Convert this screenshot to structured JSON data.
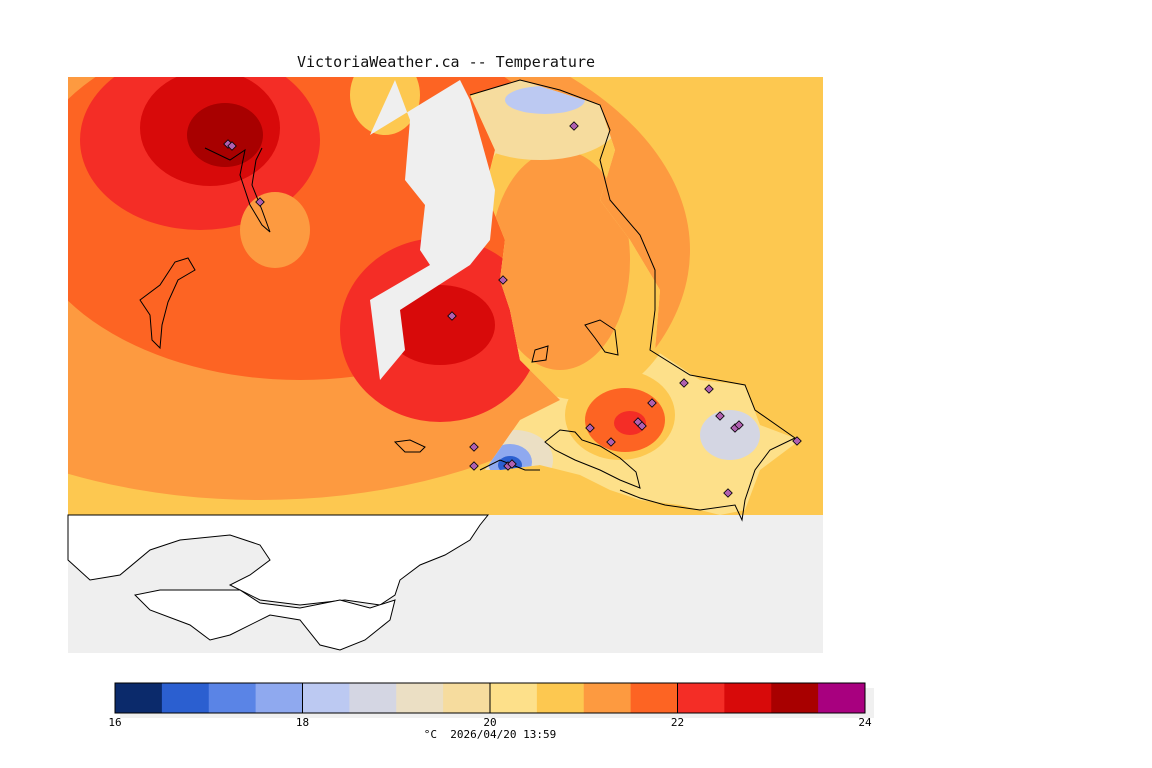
{
  "title": "VictoriaWeather.ca -- Temperature",
  "footer": {
    "unit": "°C",
    "timestamp": "2026/04/20 13:59"
  },
  "colorbar": {
    "min": 16,
    "max": 24,
    "step": 0.5,
    "tick_labels": [
      "16",
      "18",
      "20",
      "22",
      "24"
    ],
    "colors": [
      "#0b2a6b",
      "#2b5fd0",
      "#5a84e6",
      "#8fa9ef",
      "#bcc9f2",
      "#d4d6e3",
      "#ebdfc4",
      "#f6dc9e",
      "#fde08a",
      "#fdc850",
      "#fd9a40",
      "#fd6423",
      "#f42d26",
      "#d80a0a",
      "#a80000",
      "#a8007f"
    ]
  },
  "map": {
    "background_color": "#efefef",
    "land_outline_color": "#000000",
    "station_marker": "diamond"
  }
}
